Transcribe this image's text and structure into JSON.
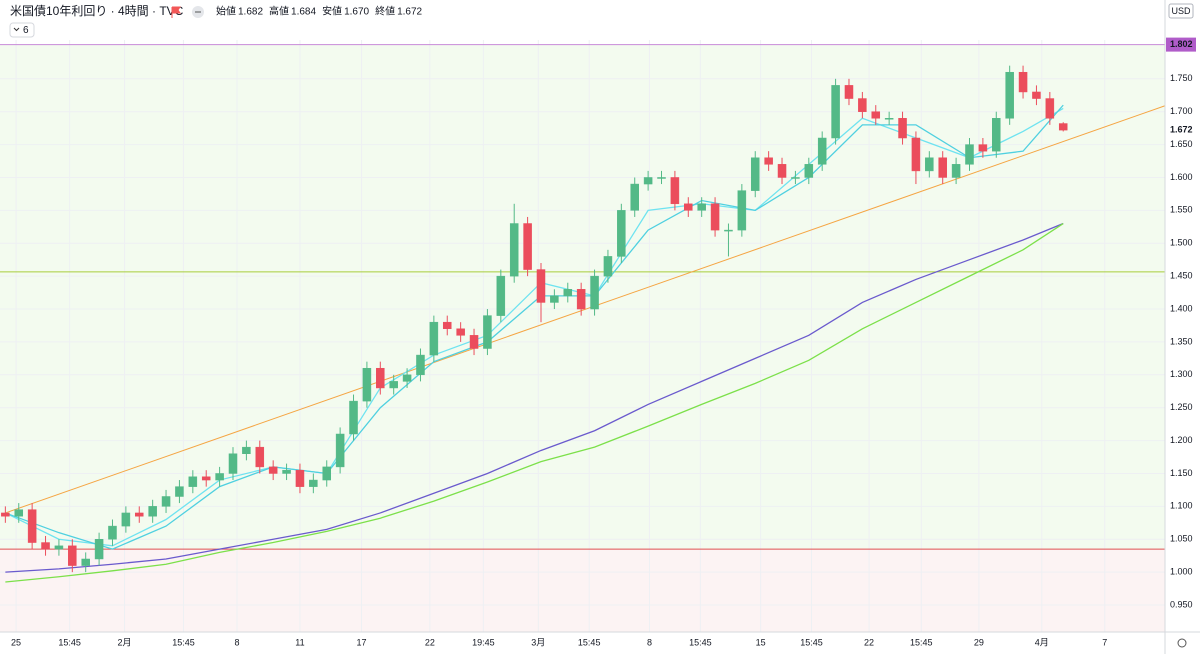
{
  "header": {
    "title": "米国債10年利回り · 4時間 · TVC",
    "ohlc_labels": [
      "始値",
      "高値",
      "安値",
      "終値"
    ],
    "ohlc_values": [
      "1.682",
      "1.684",
      "1.670",
      "1.672"
    ],
    "indicator_count": "6",
    "currency": "USD"
  },
  "chart_data": {
    "type": "candlestick",
    "open": [
      1.09,
      1.085,
      1.095,
      1.045,
      1.035,
      1.04,
      1.01,
      1.02,
      1.05,
      1.07,
      1.09,
      1.085,
      1.1,
      1.115,
      1.13,
      1.145,
      1.14,
      1.15,
      1.18,
      1.19,
      1.16,
      1.15,
      1.155,
      1.13,
      1.14,
      1.16,
      1.21,
      1.26,
      1.31,
      1.28,
      1.29,
      1.3,
      1.33,
      1.38,
      1.37,
      1.36,
      1.34,
      1.39,
      1.45,
      1.53,
      1.46,
      1.41,
      1.42,
      1.43,
      1.4,
      1.45,
      1.48,
      1.55,
      1.59,
      1.6,
      1.6,
      1.56,
      1.55,
      1.56,
      1.52,
      1.52,
      1.58,
      1.63,
      1.62,
      1.6,
      1.6,
      1.62,
      1.66,
      1.74,
      1.72,
      1.7,
      1.69,
      1.69,
      1.66,
      1.61,
      1.63,
      1.6,
      1.62,
      1.65,
      1.64,
      1.69,
      1.76,
      1.73,
      1.72,
      1.682
    ],
    "high": [
      1.1,
      1.105,
      1.105,
      1.055,
      1.05,
      1.05,
      1.03,
      1.06,
      1.08,
      1.1,
      1.1,
      1.11,
      1.125,
      1.14,
      1.155,
      1.155,
      1.16,
      1.19,
      1.2,
      1.2,
      1.17,
      1.165,
      1.165,
      1.15,
      1.17,
      1.22,
      1.27,
      1.32,
      1.32,
      1.3,
      1.31,
      1.34,
      1.39,
      1.39,
      1.38,
      1.37,
      1.4,
      1.46,
      1.56,
      1.54,
      1.47,
      1.43,
      1.44,
      1.44,
      1.46,
      1.49,
      1.56,
      1.6,
      1.61,
      1.61,
      1.61,
      1.57,
      1.57,
      1.57,
      1.53,
      1.59,
      1.64,
      1.64,
      1.63,
      1.61,
      1.63,
      1.67,
      1.75,
      1.75,
      1.73,
      1.71,
      1.7,
      1.7,
      1.67,
      1.64,
      1.64,
      1.63,
      1.66,
      1.66,
      1.7,
      1.77,
      1.77,
      1.74,
      1.73,
      1.684
    ],
    "low": [
      1.075,
      1.075,
      1.035,
      1.025,
      1.025,
      1.0,
      1.0,
      1.01,
      1.04,
      1.06,
      1.075,
      1.075,
      1.09,
      1.105,
      1.12,
      1.13,
      1.13,
      1.14,
      1.17,
      1.15,
      1.14,
      1.14,
      1.12,
      1.12,
      1.13,
      1.15,
      1.2,
      1.25,
      1.27,
      1.27,
      1.28,
      1.29,
      1.32,
      1.36,
      1.35,
      1.33,
      1.33,
      1.38,
      1.44,
      1.45,
      1.38,
      1.4,
      1.41,
      1.39,
      1.39,
      1.44,
      1.47,
      1.54,
      1.58,
      1.59,
      1.55,
      1.54,
      1.54,
      1.51,
      1.48,
      1.51,
      1.57,
      1.61,
      1.59,
      1.59,
      1.59,
      1.61,
      1.65,
      1.71,
      1.69,
      1.68,
      1.68,
      1.65,
      1.59,
      1.6,
      1.59,
      1.59,
      1.61,
      1.63,
      1.63,
      1.68,
      1.72,
      1.71,
      1.68,
      1.67
    ],
    "close": [
      1.085,
      1.095,
      1.045,
      1.035,
      1.04,
      1.01,
      1.02,
      1.05,
      1.07,
      1.09,
      1.085,
      1.1,
      1.115,
      1.13,
      1.145,
      1.14,
      1.15,
      1.18,
      1.19,
      1.16,
      1.15,
      1.155,
      1.13,
      1.14,
      1.16,
      1.21,
      1.26,
      1.31,
      1.28,
      1.29,
      1.3,
      1.33,
      1.38,
      1.37,
      1.36,
      1.34,
      1.39,
      1.45,
      1.53,
      1.46,
      1.41,
      1.42,
      1.43,
      1.4,
      1.45,
      1.48,
      1.55,
      1.59,
      1.6,
      1.6,
      1.56,
      1.55,
      1.56,
      1.52,
      1.52,
      1.58,
      1.63,
      1.62,
      1.6,
      1.6,
      1.62,
      1.66,
      1.74,
      1.72,
      1.7,
      1.69,
      1.69,
      1.66,
      1.61,
      1.63,
      1.6,
      1.62,
      1.65,
      1.64,
      1.69,
      1.76,
      1.73,
      1.72,
      1.69,
      1.672
    ],
    "up_color": "#53b987",
    "down_color": "#eb4d5c",
    "overlay_x": [
      0,
      4,
      8,
      12,
      16,
      20,
      24,
      28,
      32,
      36,
      40,
      44,
      48,
      52,
      56,
      60,
      64,
      68,
      72,
      76,
      79
    ],
    "overlays": [
      {
        "color": "#6ee3f0",
        "values": [
          1.09,
          1.05,
          1.04,
          1.08,
          1.14,
          1.16,
          1.15,
          1.28,
          1.33,
          1.36,
          1.44,
          1.42,
          1.55,
          1.56,
          1.55,
          1.62,
          1.69,
          1.66,
          1.63,
          1.67,
          1.705
        ]
      },
      {
        "color": "#4fd0e0",
        "values": [
          1.09,
          1.06,
          1.035,
          1.07,
          1.13,
          1.16,
          1.15,
          1.25,
          1.32,
          1.35,
          1.42,
          1.42,
          1.52,
          1.565,
          1.55,
          1.6,
          1.68,
          1.68,
          1.63,
          1.64,
          1.71
        ]
      },
      {
        "color": "#6a5acd",
        "values": [
          1.0,
          1.005,
          1.012,
          1.02,
          1.035,
          1.05,
          1.065,
          1.09,
          1.12,
          1.15,
          1.185,
          1.215,
          1.255,
          1.29,
          1.325,
          1.36,
          1.41,
          1.445,
          1.475,
          1.505,
          1.53
        ]
      },
      {
        "color": "#7ce04a",
        "values": [
          0.985,
          0.993,
          1.002,
          1.012,
          1.03,
          1.045,
          1.062,
          1.082,
          1.108,
          1.137,
          1.168,
          1.19,
          1.222,
          1.255,
          1.287,
          1.322,
          1.37,
          1.41,
          1.45,
          1.49,
          1.53
        ]
      }
    ],
    "trendline": {
      "x": [
        0,
        86.6
      ],
      "y": [
        1.09,
        1.709
      ],
      "color": "#f5a543"
    },
    "levels": [
      {
        "value": 1.802,
        "color": "#c78ad8"
      },
      {
        "value": 1.4565,
        "color": "#a8cc3c"
      },
      {
        "value": 1.035,
        "color": "#e05050"
      }
    ],
    "zones": [
      {
        "from": 1.035,
        "to": 1.802,
        "color": "#f3fbef"
      },
      {
        "to": 1.035,
        "color": "#fcf3f3"
      }
    ],
    "price_markers": [
      {
        "value": 1.802,
        "color": "#b05cc9",
        "boxed": true
      },
      {
        "value": 1.672,
        "color": "#131722",
        "boxed": false
      }
    ],
    "xlim": [
      -0.4,
      86.6
    ],
    "ylim": [
      0.909,
      1.809
    ],
    "xticks": [
      {
        "value": 0.8,
        "label": "25"
      },
      {
        "value": 4.8,
        "label": "15:45"
      },
      {
        "value": 8.9,
        "label": "2月"
      },
      {
        "value": 13.3,
        "label": "15:45"
      },
      {
        "value": 17.3,
        "label": "8"
      },
      {
        "value": 22.0,
        "label": "11"
      },
      {
        "value": 26.6,
        "label": "17"
      },
      {
        "value": 31.7,
        "label": "22"
      },
      {
        "value": 35.7,
        "label": "19:45"
      },
      {
        "value": 39.8,
        "label": "3月"
      },
      {
        "value": 43.6,
        "label": "15:45"
      },
      {
        "value": 48.1,
        "label": "8"
      },
      {
        "value": 51.9,
        "label": "15:45"
      },
      {
        "value": 56.4,
        "label": "15"
      },
      {
        "value": 60.2,
        "label": "15:45"
      },
      {
        "value": 64.5,
        "label": "22"
      },
      {
        "value": 68.4,
        "label": "15:45"
      },
      {
        "value": 72.7,
        "label": "29"
      },
      {
        "value": 77.4,
        "label": "4月"
      },
      {
        "value": 82.1,
        "label": "7"
      }
    ],
    "yticks": [
      {
        "value": 0.95,
        "label": "0.950"
      },
      {
        "value": 1.0,
        "label": "1.000"
      },
      {
        "value": 1.05,
        "label": "1.050"
      },
      {
        "value": 1.1,
        "label": "1.100"
      },
      {
        "value": 1.15,
        "label": "1.150"
      },
      {
        "value": 1.2,
        "label": "1.200"
      },
      {
        "value": 1.25,
        "label": "1.250"
      },
      {
        "value": 1.3,
        "label": "1.300"
      },
      {
        "value": 1.35,
        "label": "1.350"
      },
      {
        "value": 1.4,
        "label": "1.400"
      },
      {
        "value": 1.45,
        "label": "1.450"
      },
      {
        "value": 1.5,
        "label": "1.500"
      },
      {
        "value": 1.55,
        "label": "1.550"
      },
      {
        "value": 1.6,
        "label": "1.600"
      },
      {
        "value": 1.65,
        "label": "1.650"
      },
      {
        "value": 1.7,
        "label": "1.700"
      },
      {
        "value": 1.75,
        "label": "1.750"
      }
    ],
    "grid": true
  }
}
